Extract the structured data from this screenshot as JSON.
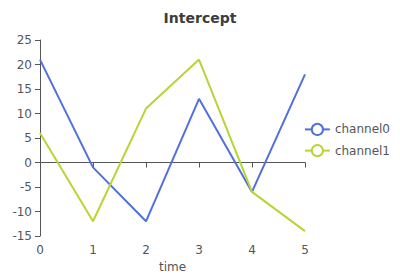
{
  "chart_data": {
    "type": "line",
    "title": "Intercept",
    "xlabel": "time",
    "x": [
      0,
      1,
      2,
      3,
      4,
      5
    ],
    "series": [
      {
        "name": "channel0",
        "values": [
          21,
          -1,
          -12,
          13,
          -6,
          18
        ]
      },
      {
        "name": "channel1",
        "values": [
          6,
          -12,
          11,
          21,
          -6,
          -14
        ]
      }
    ],
    "xlim": [
      0,
      5
    ],
    "xticks": [
      0,
      1,
      2,
      3,
      4,
      5
    ],
    "ylim": [
      -15,
      25
    ],
    "yticks": [
      -15,
      -10,
      -5,
      0,
      5,
      10,
      15,
      20,
      25
    ],
    "grid": false,
    "legend": "right"
  }
}
